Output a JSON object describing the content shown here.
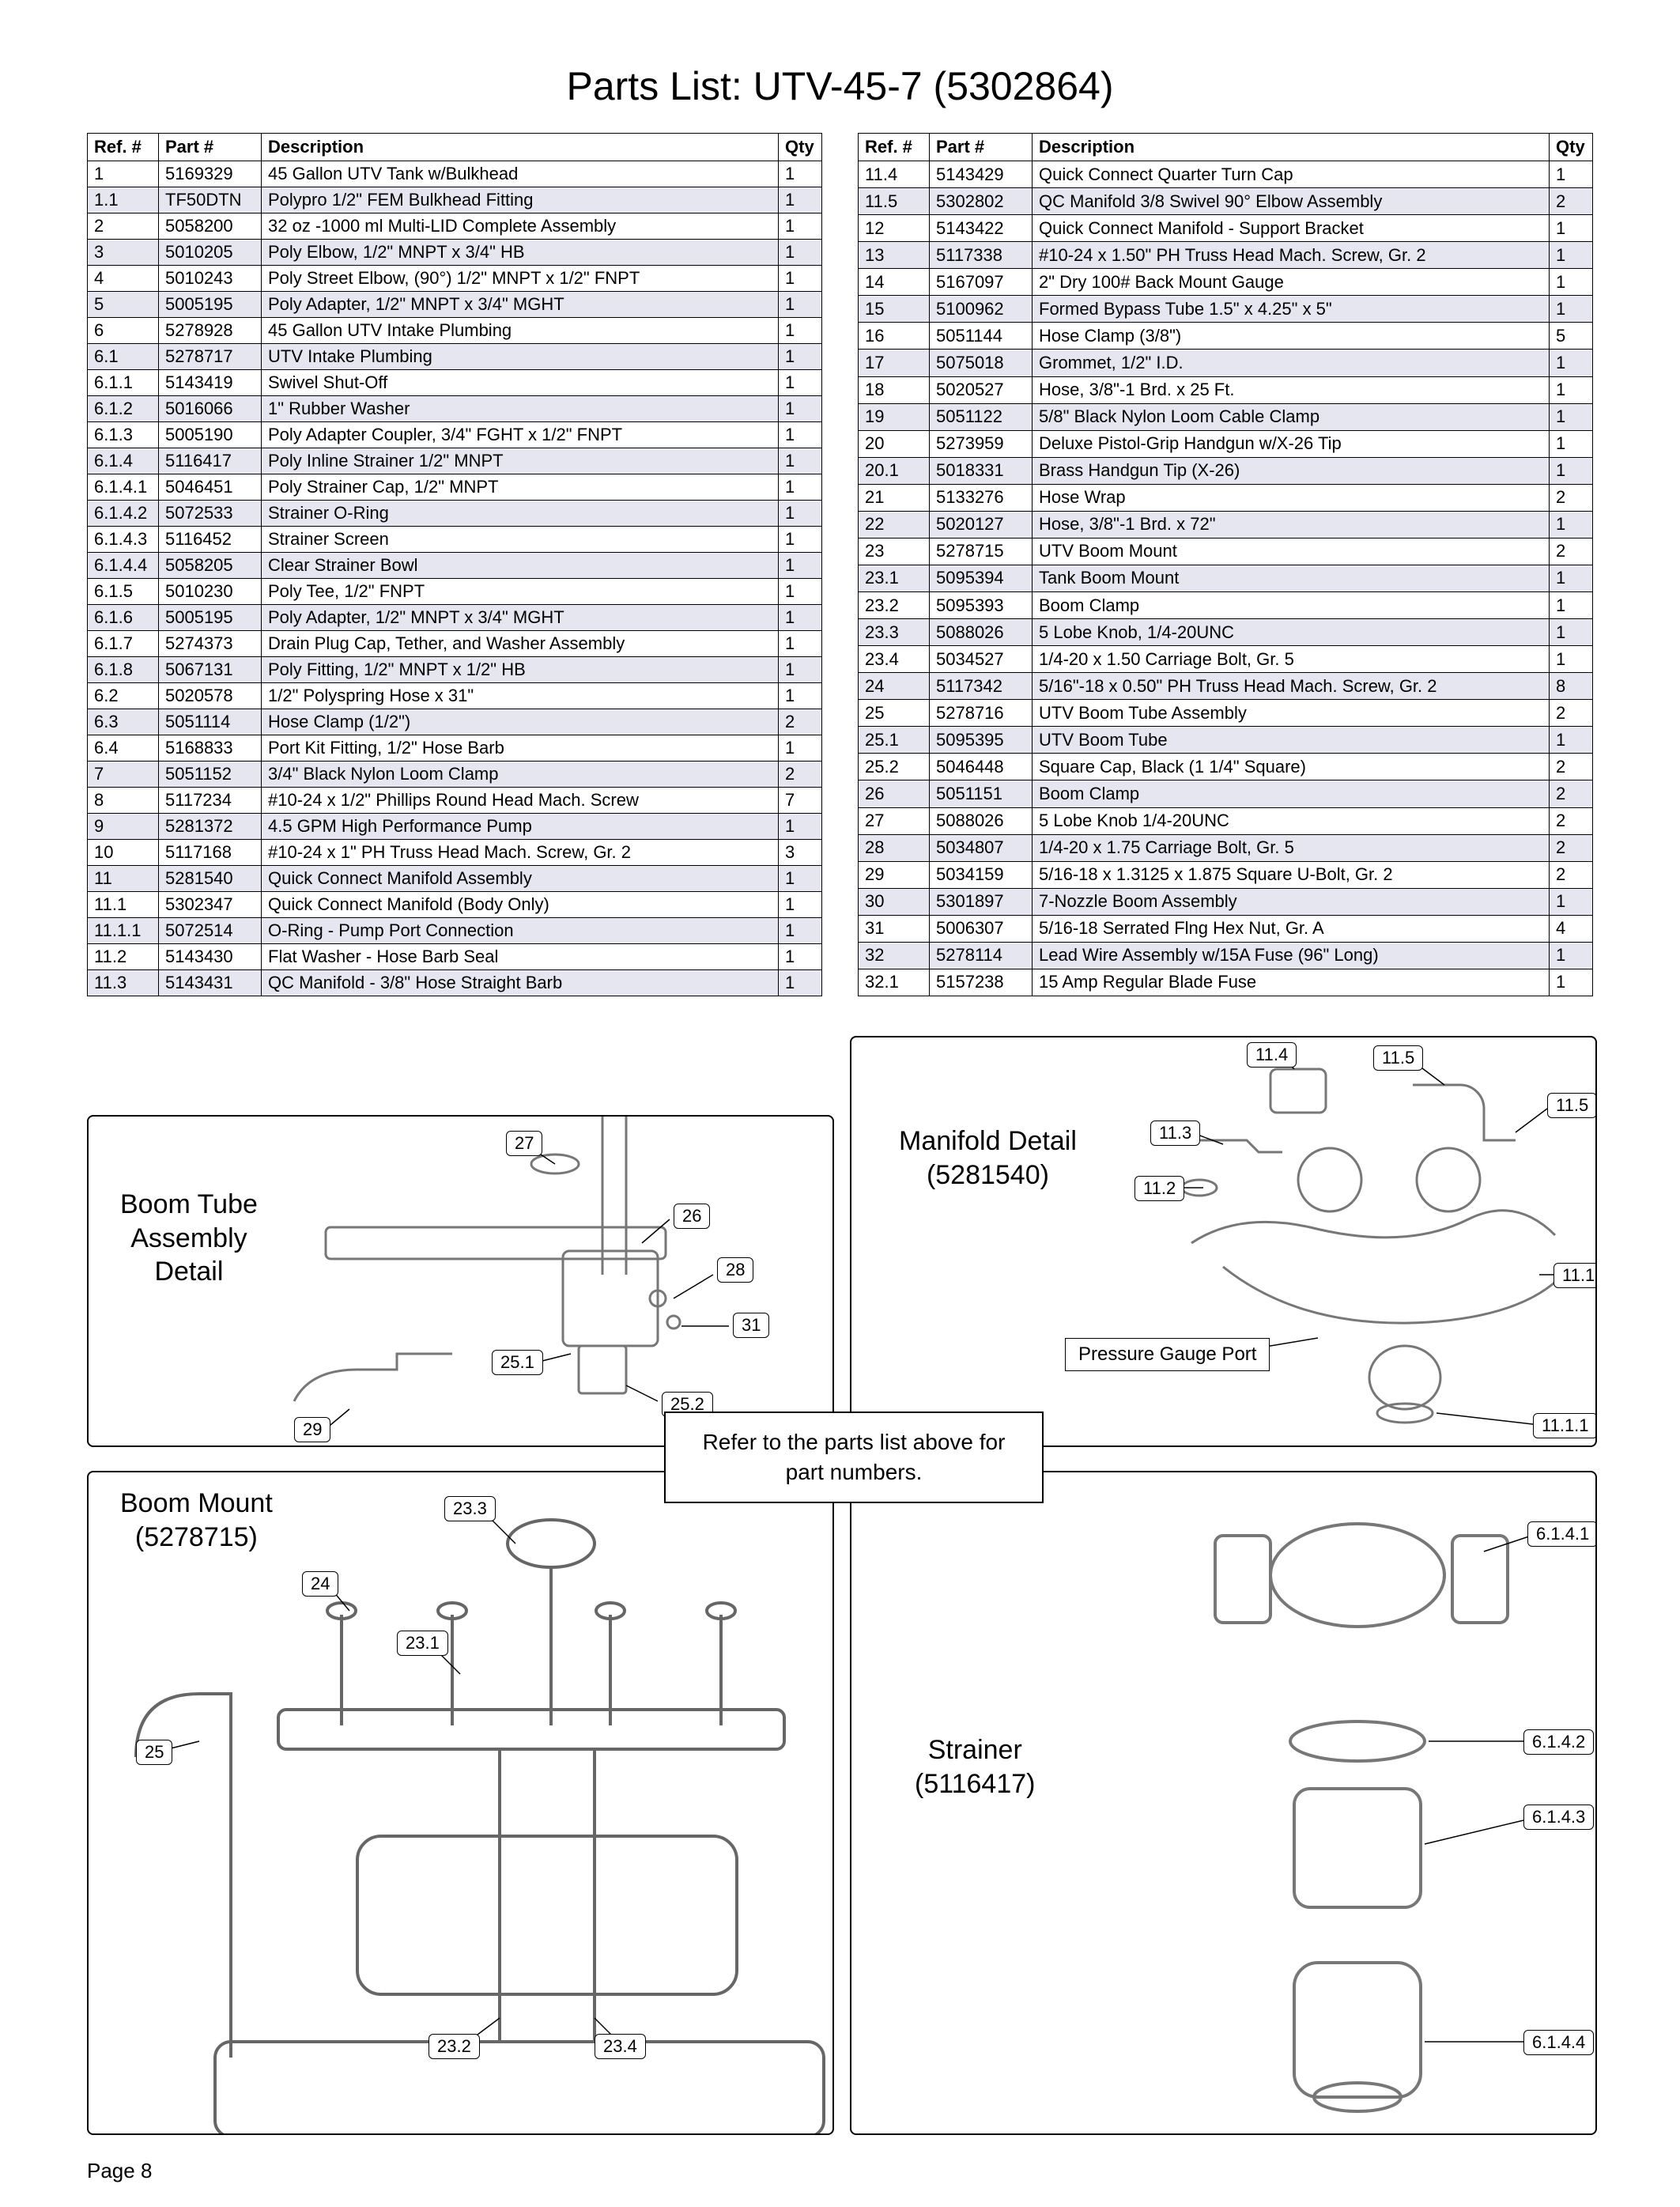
{
  "title": "Parts List: UTV-45-7 (5302864)",
  "page_number": "Page 8",
  "columns": [
    "Ref. #",
    "Part #",
    "Description",
    "Qty"
  ],
  "note": "Refer to the parts list above for part numbers.",
  "diagrams": {
    "boom_tube": {
      "caption": "Boom Tube\nAssembly\nDetail",
      "callouts": [
        "27",
        "26",
        "28",
        "31",
        "25.1",
        "25.2",
        "29"
      ]
    },
    "manifold": {
      "caption": "Manifold Detail\n(5281540)",
      "callouts": [
        "11.4",
        "11.5",
        "11.5",
        "11.3",
        "11.2",
        "11.1",
        "11.1.1"
      ],
      "label": "Pressure Gauge Port"
    },
    "boom_mount": {
      "caption": "Boom Mount\n(5278715)",
      "callouts": [
        "23.3",
        "24",
        "23.1",
        "25",
        "23.2",
        "23.4"
      ]
    },
    "strainer": {
      "caption": "Strainer\n(5116417)",
      "callouts": [
        "6.1.4.1",
        "6.1.4.2",
        "6.1.4.3",
        "6.1.4.4"
      ]
    }
  },
  "rows_left": [
    {
      "s": false,
      "r": "1",
      "p": "5169329",
      "d": "45 Gallon UTV Tank w/Bulkhead",
      "q": "1"
    },
    {
      "s": true,
      "r": "1.1",
      "p": "TF50DTN",
      "d": "Polypro 1/2\" FEM Bulkhead Fitting",
      "q": "1"
    },
    {
      "s": false,
      "r": "2",
      "p": "5058200",
      "d": "32 oz -1000 ml Multi-LID Complete Assembly",
      "q": "1"
    },
    {
      "s": true,
      "r": "3",
      "p": "5010205",
      "d": "Poly Elbow, 1/2\" MNPT x 3/4\" HB",
      "q": "1"
    },
    {
      "s": false,
      "r": "4",
      "p": "5010243",
      "d": "Poly Street Elbow, (90°) 1/2\" MNPT x 1/2\" FNPT",
      "q": "1"
    },
    {
      "s": true,
      "r": "5",
      "p": "5005195",
      "d": "Poly Adapter, 1/2\" MNPT x 3/4\" MGHT",
      "q": "1"
    },
    {
      "s": false,
      "r": "6",
      "p": "5278928",
      "d": "45 Gallon UTV Intake Plumbing",
      "q": "1"
    },
    {
      "s": true,
      "r": "6.1",
      "p": "5278717",
      "d": "UTV Intake Plumbing",
      "q": "1"
    },
    {
      "s": false,
      "r": "6.1.1",
      "p": "5143419",
      "d": "Swivel Shut-Off",
      "q": "1"
    },
    {
      "s": true,
      "r": "6.1.2",
      "p": "5016066",
      "d": "1\" Rubber Washer",
      "q": "1"
    },
    {
      "s": false,
      "r": "6.1.3",
      "p": "5005190",
      "d": "Poly Adapter Coupler, 3/4\" FGHT x 1/2\" FNPT",
      "q": "1"
    },
    {
      "s": true,
      "r": "6.1.4",
      "p": "5116417",
      "d": "Poly Inline Strainer 1/2\" MNPT",
      "q": "1"
    },
    {
      "s": false,
      "r": "6.1.4.1",
      "p": "5046451",
      "d": "Poly Strainer Cap, 1/2\" MNPT",
      "q": "1"
    },
    {
      "s": true,
      "r": "6.1.4.2",
      "p": "5072533",
      "d": "Strainer O-Ring",
      "q": "1"
    },
    {
      "s": false,
      "r": "6.1.4.3",
      "p": "5116452",
      "d": "Strainer Screen",
      "q": "1"
    },
    {
      "s": true,
      "r": "6.1.4.4",
      "p": "5058205",
      "d": "Clear Strainer Bowl",
      "q": "1"
    },
    {
      "s": false,
      "r": "6.1.5",
      "p": "5010230",
      "d": "Poly Tee, 1/2\" FNPT",
      "q": "1"
    },
    {
      "s": true,
      "r": "6.1.6",
      "p": "5005195",
      "d": "Poly Adapter, 1/2\" MNPT x 3/4\" MGHT",
      "q": "1"
    },
    {
      "s": false,
      "r": "6.1.7",
      "p": "5274373",
      "d": "Drain Plug Cap, Tether, and Washer Assembly",
      "q": "1"
    },
    {
      "s": true,
      "r": "6.1.8",
      "p": "5067131",
      "d": "Poly Fitting, 1/2\" MNPT x 1/2\" HB",
      "q": "1"
    },
    {
      "s": false,
      "r": "6.2",
      "p": "5020578",
      "d": "1/2\" Polyspring Hose x 31\"",
      "q": "1"
    },
    {
      "s": true,
      "r": "6.3",
      "p": "5051114",
      "d": "Hose Clamp (1/2\")",
      "q": "2"
    },
    {
      "s": false,
      "r": "6.4",
      "p": "5168833",
      "d": "Port Kit Fitting, 1/2\" Hose Barb",
      "q": "1"
    },
    {
      "s": true,
      "r": "7",
      "p": "5051152",
      "d": "3/4\" Black Nylon Loom Clamp",
      "q": "2"
    },
    {
      "s": false,
      "r": "8",
      "p": "5117234",
      "d": "#10-24 x 1/2\" Phillips Round Head Mach. Screw",
      "q": "7"
    },
    {
      "s": true,
      "r": "9",
      "p": "5281372",
      "d": "4.5 GPM High Performance Pump",
      "q": "1"
    },
    {
      "s": false,
      "r": "10",
      "p": "5117168",
      "d": "#10-24 x 1\" PH Truss Head Mach. Screw, Gr. 2",
      "q": "3"
    },
    {
      "s": true,
      "r": "11",
      "p": "5281540",
      "d": "Quick Connect Manifold Assembly",
      "q": "1"
    },
    {
      "s": false,
      "r": "11.1",
      "p": "5302347",
      "d": "Quick Connect Manifold (Body Only)",
      "q": "1"
    },
    {
      "s": true,
      "r": "11.1.1",
      "p": "5072514",
      "d": "O-Ring - Pump Port Connection",
      "q": "1"
    },
    {
      "s": false,
      "r": "11.2",
      "p": "5143430",
      "d": "Flat Washer - Hose Barb Seal",
      "q": "1"
    },
    {
      "s": true,
      "r": "11.3",
      "p": "5143431",
      "d": "QC Manifold - 3/8\" Hose Straight Barb",
      "q": "1"
    }
  ],
  "rows_right": [
    {
      "s": false,
      "r": "11.4",
      "p": "5143429",
      "d": "Quick Connect Quarter Turn Cap",
      "q": "1"
    },
    {
      "s": true,
      "r": "11.5",
      "p": "5302802",
      "d": "QC Manifold 3/8 Swivel 90° Elbow Assembly",
      "q": "2"
    },
    {
      "s": false,
      "r": "12",
      "p": "5143422",
      "d": "Quick Connect Manifold - Support Bracket",
      "q": "1"
    },
    {
      "s": true,
      "r": "13",
      "p": "5117338",
      "d": "#10-24 x 1.50\" PH Truss Head Mach. Screw, Gr. 2",
      "q": "1"
    },
    {
      "s": false,
      "r": "14",
      "p": "5167097",
      "d": "2\" Dry 100# Back Mount Gauge",
      "q": "1"
    },
    {
      "s": true,
      "r": "15",
      "p": "5100962",
      "d": "Formed Bypass Tube 1.5\" x 4.25\" x 5\"",
      "q": "1"
    },
    {
      "s": false,
      "r": "16",
      "p": "5051144",
      "d": "Hose Clamp (3/8\")",
      "q": "5"
    },
    {
      "s": true,
      "r": "17",
      "p": "5075018",
      "d": "Grommet, 1/2\" I.D.",
      "q": "1"
    },
    {
      "s": false,
      "r": "18",
      "p": "5020527",
      "d": "Hose, 3/8\"-1 Brd. x 25 Ft.",
      "q": "1"
    },
    {
      "s": true,
      "r": "19",
      "p": "5051122",
      "d": "5/8\" Black Nylon Loom Cable Clamp",
      "q": "1"
    },
    {
      "s": false,
      "r": "20",
      "p": "5273959",
      "d": "Deluxe Pistol-Grip Handgun w/X-26 Tip",
      "q": "1"
    },
    {
      "s": true,
      "r": "20.1",
      "p": "5018331",
      "d": "Brass Handgun Tip (X-26)",
      "q": "1"
    },
    {
      "s": false,
      "r": "21",
      "p": "5133276",
      "d": "Hose Wrap",
      "q": "2"
    },
    {
      "s": true,
      "r": "22",
      "p": "5020127",
      "d": "Hose, 3/8\"-1 Brd. x 72\"",
      "q": "1"
    },
    {
      "s": false,
      "r": "23",
      "p": "5278715",
      "d": "UTV Boom Mount",
      "q": "2"
    },
    {
      "s": true,
      "r": "23.1",
      "p": "5095394",
      "d": "Tank Boom Mount",
      "q": "1"
    },
    {
      "s": false,
      "r": "23.2",
      "p": "5095393",
      "d": "Boom Clamp",
      "q": "1"
    },
    {
      "s": true,
      "r": "23.3",
      "p": "5088026",
      "d": "5 Lobe Knob, 1/4-20UNC",
      "q": "1"
    },
    {
      "s": false,
      "r": "23.4",
      "p": "5034527",
      "d": "1/4-20 x 1.50 Carriage Bolt, Gr. 5",
      "q": "1"
    },
    {
      "s": true,
      "r": "24",
      "p": "5117342",
      "d": "5/16\"-18 x 0.50\" PH Truss Head Mach. Screw, Gr. 2",
      "q": "8"
    },
    {
      "s": false,
      "r": "25",
      "p": "5278716",
      "d": "UTV Boom Tube Assembly",
      "q": "2"
    },
    {
      "s": true,
      "r": "25.1",
      "p": "5095395",
      "d": "UTV Boom Tube",
      "q": "1"
    },
    {
      "s": false,
      "r": "25.2",
      "p": "5046448",
      "d": "Square Cap, Black (1 1/4\" Square)",
      "q": "2"
    },
    {
      "s": true,
      "r": "26",
      "p": "5051151",
      "d": "Boom Clamp",
      "q": "2"
    },
    {
      "s": false,
      "r": "27",
      "p": "5088026",
      "d": "5 Lobe Knob 1/4-20UNC",
      "q": "2"
    },
    {
      "s": true,
      "r": "28",
      "p": "5034807",
      "d": "1/4-20 x 1.75 Carriage Bolt, Gr. 5",
      "q": "2"
    },
    {
      "s": false,
      "r": "29",
      "p": "5034159",
      "d": "5/16-18 x 1.3125 x 1.875  Square U-Bolt, Gr. 2",
      "q": "2"
    },
    {
      "s": true,
      "r": "30",
      "p": "5301897",
      "d": "7-Nozzle Boom Assembly",
      "q": "1"
    },
    {
      "s": false,
      "r": "31",
      "p": "5006307",
      "d": "5/16-18 Serrated Flng Hex Nut, Gr. A",
      "q": "4"
    },
    {
      "s": true,
      "r": "32",
      "p": "5278114",
      "d": "Lead Wire Assembly w/15A Fuse (96\" Long)",
      "q": "1"
    },
    {
      "s": false,
      "r": "32.1",
      "p": "5157238",
      "d": "15 Amp Regular Blade Fuse",
      "q": "1"
    }
  ]
}
